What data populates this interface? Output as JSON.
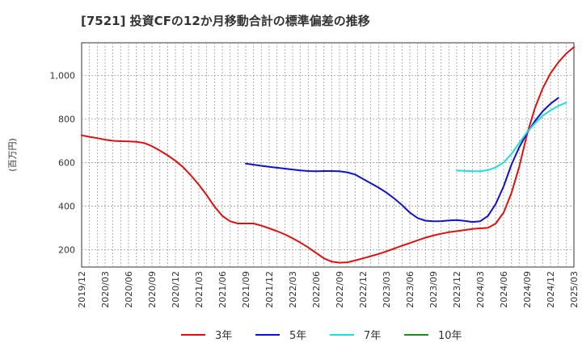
{
  "chart_data": {
    "type": "line",
    "title": "[7521]  投資CFの12か月移動合計の標準偏差の推移",
    "ylabel": "(百万円)",
    "xlabel": "",
    "x_ticks": [
      "2019/12",
      "2020/03",
      "2020/06",
      "2020/09",
      "2020/12",
      "2021/03",
      "2021/06",
      "2021/09",
      "2021/12",
      "2022/03",
      "2022/06",
      "2022/09",
      "2022/12",
      "2023/03",
      "2023/06",
      "2023/09",
      "2023/12",
      "2024/03",
      "2024/06",
      "2024/09",
      "2024/12",
      "2025/03"
    ],
    "y_ticks": [
      200,
      400,
      600,
      800,
      1000
    ],
    "y_tick_labels": [
      "200",
      "400",
      "600",
      "800",
      "1,000"
    ],
    "ylim": [
      120,
      1150
    ],
    "grid": true,
    "legend_position": "bottom",
    "series": [
      {
        "name": "3年",
        "color": "#dd1111",
        "points": [
          [
            "2019/12",
            725
          ],
          [
            "2020/01",
            718
          ],
          [
            "2020/02",
            712
          ],
          [
            "2020/03",
            705
          ],
          [
            "2020/04",
            700
          ],
          [
            "2020/05",
            698
          ],
          [
            "2020/06",
            697
          ],
          [
            "2020/07",
            695
          ],
          [
            "2020/08",
            690
          ],
          [
            "2020/09",
            675
          ],
          [
            "2020/10",
            655
          ],
          [
            "2020/11",
            633
          ],
          [
            "2020/12",
            608
          ],
          [
            "2021/01",
            578
          ],
          [
            "2021/02",
            540
          ],
          [
            "2021/03",
            498
          ],
          [
            "2021/04",
            450
          ],
          [
            "2021/05",
            398
          ],
          [
            "2021/06",
            355
          ],
          [
            "2021/07",
            330
          ],
          [
            "2021/08",
            320
          ],
          [
            "2021/09",
            320
          ],
          [
            "2021/10",
            320
          ],
          [
            "2021/11",
            310
          ],
          [
            "2021/12",
            298
          ],
          [
            "2022/01",
            285
          ],
          [
            "2022/02",
            270
          ],
          [
            "2022/03",
            252
          ],
          [
            "2022/04",
            232
          ],
          [
            "2022/05",
            210
          ],
          [
            "2022/06",
            185
          ],
          [
            "2022/07",
            160
          ],
          [
            "2022/08",
            145
          ],
          [
            "2022/09",
            140
          ],
          [
            "2022/10",
            142
          ],
          [
            "2022/11",
            150
          ],
          [
            "2022/12",
            160
          ],
          [
            "2023/01",
            170
          ],
          [
            "2023/02",
            180
          ],
          [
            "2023/03",
            192
          ],
          [
            "2023/04",
            205
          ],
          [
            "2023/05",
            218
          ],
          [
            "2023/06",
            230
          ],
          [
            "2023/07",
            243
          ],
          [
            "2023/08",
            255
          ],
          [
            "2023/09",
            265
          ],
          [
            "2023/10",
            273
          ],
          [
            "2023/11",
            280
          ],
          [
            "2023/12",
            285
          ],
          [
            "2024/01",
            290
          ],
          [
            "2024/02",
            295
          ],
          [
            "2024/03",
            298
          ],
          [
            "2024/04",
            300
          ],
          [
            "2024/05",
            320
          ],
          [
            "2024/06",
            370
          ],
          [
            "2024/07",
            460
          ],
          [
            "2024/08",
            580
          ],
          [
            "2024/09",
            730
          ],
          [
            "2024/10",
            850
          ],
          [
            "2024/11",
            940
          ],
          [
            "2024/12",
            1010
          ],
          [
            "2025/01",
            1060
          ],
          [
            "2025/02",
            1100
          ],
          [
            "2025/03",
            1130
          ]
        ]
      },
      {
        "name": "5年",
        "color": "#1111cc",
        "points": [
          [
            "2021/09",
            595
          ],
          [
            "2021/10",
            590
          ],
          [
            "2021/11",
            585
          ],
          [
            "2021/12",
            580
          ],
          [
            "2022/01",
            576
          ],
          [
            "2022/02",
            572
          ],
          [
            "2022/03",
            568
          ],
          [
            "2022/04",
            564
          ],
          [
            "2022/05",
            561
          ],
          [
            "2022/06",
            560
          ],
          [
            "2022/07",
            561
          ],
          [
            "2022/08",
            561
          ],
          [
            "2022/09",
            560
          ],
          [
            "2022/10",
            555
          ],
          [
            "2022/11",
            545
          ],
          [
            "2022/12",
            525
          ],
          [
            "2023/01",
            505
          ],
          [
            "2023/02",
            485
          ],
          [
            "2023/03",
            462
          ],
          [
            "2023/04",
            435
          ],
          [
            "2023/05",
            405
          ],
          [
            "2023/06",
            370
          ],
          [
            "2023/07",
            345
          ],
          [
            "2023/08",
            333
          ],
          [
            "2023/09",
            330
          ],
          [
            "2023/10",
            331
          ],
          [
            "2023/11",
            334
          ],
          [
            "2023/12",
            336
          ],
          [
            "2024/01",
            332
          ],
          [
            "2024/02",
            327
          ],
          [
            "2024/03",
            330
          ],
          [
            "2024/04",
            355
          ],
          [
            "2024/05",
            410
          ],
          [
            "2024/06",
            490
          ],
          [
            "2024/07",
            590
          ],
          [
            "2024/08",
            670
          ],
          [
            "2024/09",
            735
          ],
          [
            "2024/10",
            790
          ],
          [
            "2024/11",
            835
          ],
          [
            "2024/12",
            870
          ],
          [
            "2025/01",
            897
          ]
        ]
      },
      {
        "name": "7年",
        "color": "#22dddd",
        "points": [
          [
            "2023/12",
            563
          ],
          [
            "2024/01",
            562
          ],
          [
            "2024/02",
            560
          ],
          [
            "2024/03",
            560
          ],
          [
            "2024/04",
            565
          ],
          [
            "2024/05",
            578
          ],
          [
            "2024/06",
            600
          ],
          [
            "2024/07",
            640
          ],
          [
            "2024/08",
            690
          ],
          [
            "2024/09",
            740
          ],
          [
            "2024/10",
            780
          ],
          [
            "2024/11",
            815
          ],
          [
            "2024/12",
            840
          ],
          [
            "2025/01",
            860
          ],
          [
            "2025/02",
            875
          ]
        ]
      },
      {
        "name": "10年",
        "color": "#228822",
        "points": []
      }
    ]
  }
}
